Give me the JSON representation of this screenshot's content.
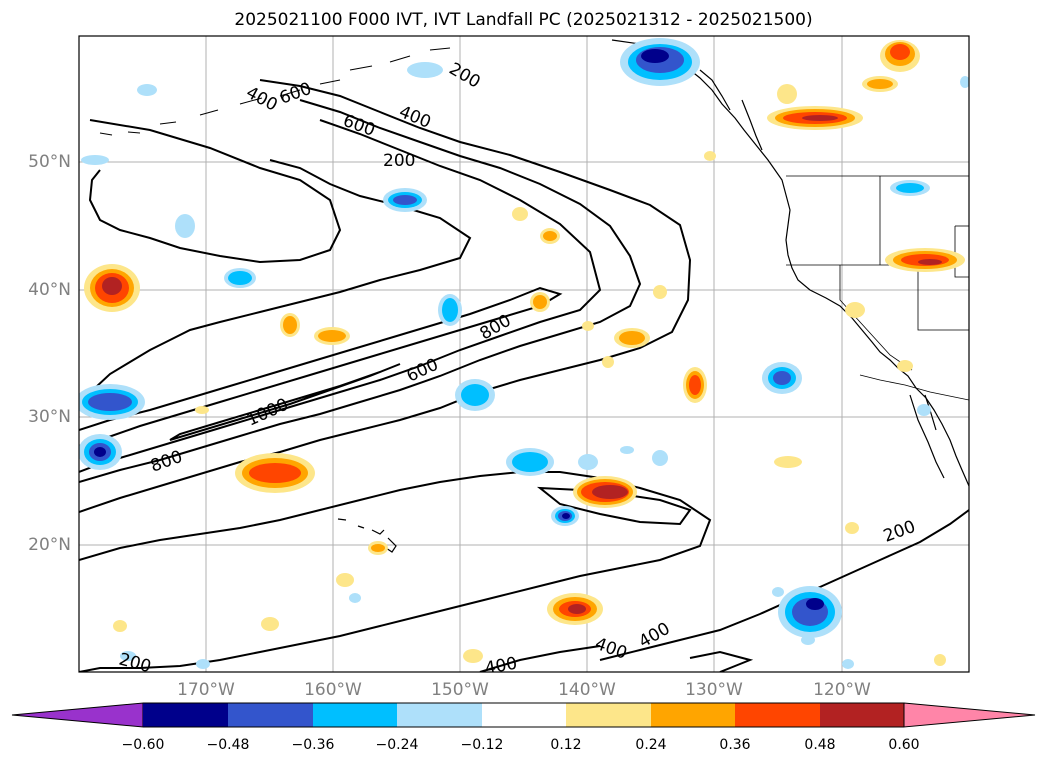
{
  "title": "2025021100 F000 IVT, IVT Landfall PC (2025021312 - 2025021500)",
  "map": {
    "lat_labels": [
      "50°N",
      "40°N",
      "30°N",
      "20°N"
    ],
    "lon_labels": [
      "170°W",
      "160°W",
      "150°W",
      "140°W",
      "130°W",
      "120°W"
    ],
    "contour_labels": [
      "200",
      "400",
      "600",
      "600",
      "400",
      "200",
      "800",
      "600",
      "1000",
      "800",
      "200",
      "400",
      "400",
      "400",
      "200"
    ]
  },
  "colorbar": {
    "colors": [
      "#9932cc",
      "#00008b",
      "#3355cc",
      "#00bfff",
      "#aee0fa",
      "#ffffff",
      "#fde68a",
      "#ffa500",
      "#ff4500",
      "#b22222",
      "#ff85a8"
    ],
    "tick_labels": [
      "−0.60",
      "−0.48",
      "−0.36",
      "−0.24",
      "−0.12",
      "0.12",
      "0.24",
      "0.36",
      "0.48",
      "0.60"
    ]
  }
}
